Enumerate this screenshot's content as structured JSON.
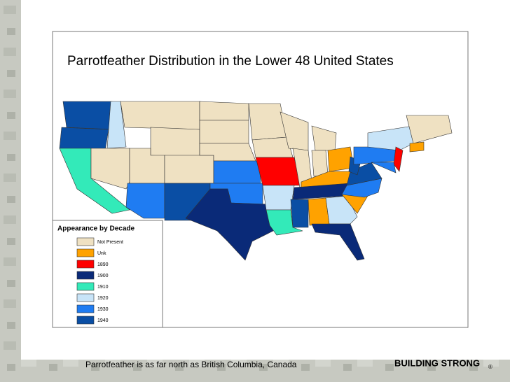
{
  "title": "Parrotfeather Distribution in the Lower 48 United States",
  "legend": {
    "title": "Appearance by Decade",
    "items": [
      {
        "label": "Not Present",
        "color": "#efe1c2"
      },
      {
        "label": "Unk",
        "color": "#ffa200"
      },
      {
        "label": "1890",
        "color": "#ff0000"
      },
      {
        "label": "1900",
        "color": "#0a2a78"
      },
      {
        "label": "1910",
        "color": "#33eab9"
      },
      {
        "label": "1920",
        "color": "#c8e4f8"
      },
      {
        "label": "1930",
        "color": "#1f7cf2"
      },
      {
        "label": "1940",
        "color": "#0a4ea4"
      }
    ]
  },
  "caption": "Parrotfeather is as far north as British Columbia, Canada",
  "brand": "BUILDING STRONG",
  "brand_mark": "®"
}
